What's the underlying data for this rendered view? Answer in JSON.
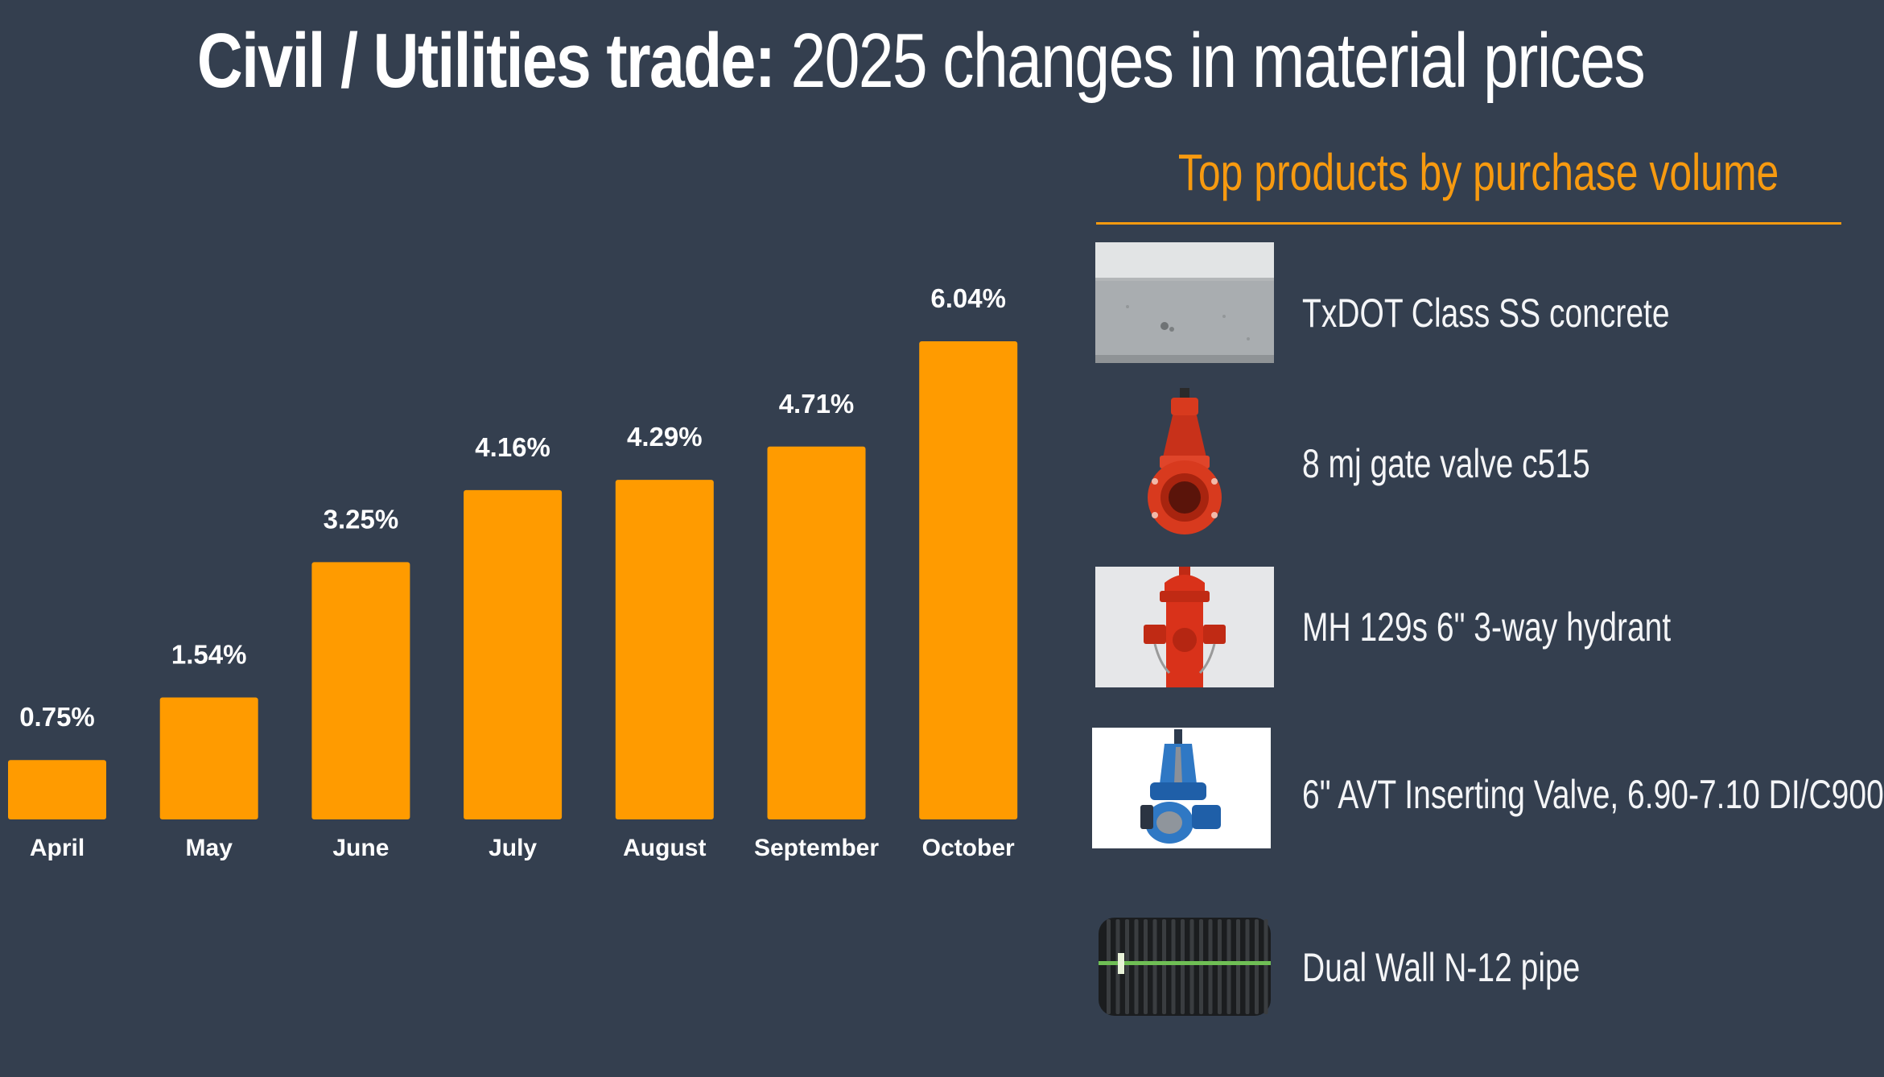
{
  "title": {
    "bold": "Civil / Utilities trade:",
    "light": "2025 changes in material prices"
  },
  "chart_data": {
    "type": "bar",
    "title": "Civil / Utilities trade: 2025 changes in material prices",
    "categories": [
      "April",
      "May",
      "June",
      "July",
      "August",
      "September",
      "October"
    ],
    "values": [
      0.75,
      1.54,
      3.25,
      4.16,
      4.29,
      4.71,
      6.04
    ],
    "value_labels": [
      "0.75%",
      "1.54%",
      "3.25%",
      "4.16%",
      "4.29%",
      "4.71%",
      "6.04%"
    ],
    "unit": "%",
    "xlabel": "",
    "ylabel": "",
    "ylim": [
      0,
      6.04
    ],
    "grid": false,
    "bar_color": "#ff9b00"
  },
  "products": {
    "heading": "Top products by purchase volume",
    "accent_color": "#f79a10",
    "items": [
      {
        "label": "TxDOT Class SS concrete",
        "icon": "concrete-slab-icon"
      },
      {
        "label": "8 mj gate valve c515",
        "icon": "gate-valve-icon"
      },
      {
        "label": "MH 129s 6\" 3-way hydrant",
        "icon": "fire-hydrant-icon"
      },
      {
        "label": "6\" AVT Inserting Valve, 6.90-7.10 DI/C900",
        "icon": "inserting-valve-icon"
      },
      {
        "label": "Dual Wall N-12 pipe",
        "icon": "corrugated-pipe-icon"
      }
    ]
  }
}
